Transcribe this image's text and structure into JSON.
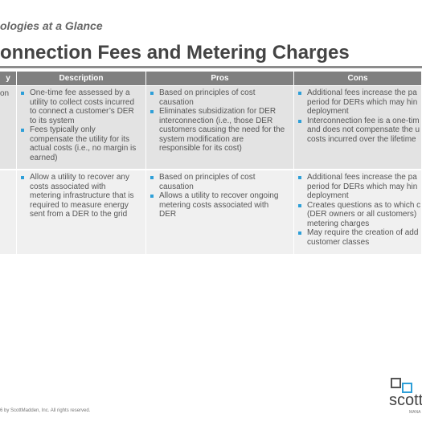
{
  "header": {
    "subtitle": "ologies at a Glance",
    "title": "onnection Fees and Metering Charges"
  },
  "table": {
    "columns": [
      "y",
      "Description",
      "Pros",
      "Cons"
    ],
    "rows": [
      {
        "label": "on",
        "cells": [
          [
            [
              "One-time fee assessed by a",
              "utility to collect costs incurred",
              "to connect a customer’s DER",
              "to its system"
            ],
            [
              "Fees typically only",
              "compensate the utility for its",
              "actual costs (i.e., no margin is",
              "earned)"
            ]
          ],
          [
            [
              "Based on principles of cost",
              "causation"
            ],
            [
              "Eliminates subsidization for DER",
              "interconnection (i.e., those DER",
              "customers causing the need for the",
              "system modification are",
              "responsible for its cost)"
            ]
          ],
          [
            [
              "Additional fees increase the pa",
              "period for DERs which may hin",
              "deployment"
            ],
            [
              "Interconnection fee is a one-tim",
              "and does not compensate the u",
              "costs incurred over the lifetime"
            ]
          ]
        ]
      },
      {
        "cells": [
          [
            [
              "Allow a utility to recover any",
              "costs associated with",
              "metering infrastructure that is",
              "required to measure energy",
              "sent from a DER to the grid"
            ]
          ],
          [
            [
              "Based on principles of cost",
              "causation"
            ],
            [
              "Allows a utility to recover ongoing",
              "metering costs associated with",
              "DER"
            ]
          ],
          [
            [
              "Additional fees increase the pa",
              "period for DERs which may hin",
              "deployment"
            ],
            [
              "Creates questions as to which c",
              "(DER owners or all customers)",
              "metering charges"
            ],
            [
              "May require the creation of add",
              "customer classes"
            ]
          ]
        ]
      }
    ]
  },
  "footer": {
    "copyright": "6 by ScottMadden, Inc. All rights reserved.",
    "logo": "scott",
    "logo_sub": "MANA"
  }
}
